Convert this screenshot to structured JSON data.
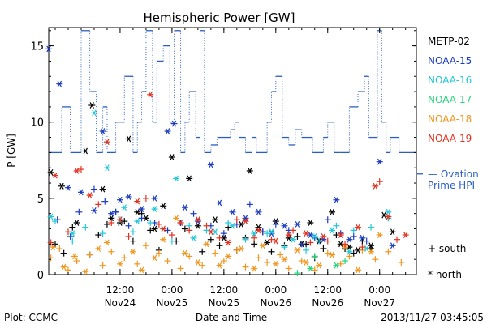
{
  "chart_data": {
    "type": "scatter",
    "title": "Hemispheric Power [GW]",
    "ylabel": "P [GW]",
    "xlabel": "Date and Time",
    "ylim": [
      0,
      16.2
    ],
    "y_ticks": [
      0,
      5,
      10,
      15
    ],
    "y_tick_labels": [
      "0",
      "5",
      "10",
      "15"
    ],
    "x_range_hours": [
      -4.5,
      80.5
    ],
    "x_ticks": [
      {
        "hour": 12,
        "time": "12:00",
        "date": "Nov24"
      },
      {
        "hour": 24,
        "time": "0:00",
        "date": "Nov25"
      },
      {
        "hour": 36,
        "time": "12:00",
        "date": "Nov25"
      },
      {
        "hour": 48,
        "time": "0:00",
        "date": "Nov26"
      },
      {
        "hour": 60,
        "time": "12:00",
        "date": "Nov26"
      },
      {
        "hour": 72,
        "time": "0:00",
        "date": "Nov27"
      }
    ],
    "ovation_label": "— Ovation",
    "ovation_label2": "Prime HPI",
    "ovation_color": "#2a5fc0",
    "ovation_step": [
      [
        -4.5,
        8
      ],
      [
        -1.5,
        11
      ],
      [
        0.5,
        8
      ],
      [
        3,
        16
      ],
      [
        5,
        12
      ],
      [
        6.5,
        8
      ],
      [
        8,
        11
      ],
      [
        9,
        8
      ],
      [
        11,
        10
      ],
      [
        13,
        13
      ],
      [
        15,
        8
      ],
      [
        16,
        10
      ],
      [
        17,
        12
      ],
      [
        18,
        16
      ],
      [
        19.5,
        10
      ],
      [
        20.5,
        14
      ],
      [
        22,
        15
      ],
      [
        23.5,
        10
      ],
      [
        24.5,
        16
      ],
      [
        26,
        8
      ],
      [
        27,
        10
      ],
      [
        28,
        12
      ],
      [
        29.5,
        9
      ],
      [
        30.5,
        16
      ],
      [
        31.5,
        8
      ],
      [
        33,
        8.5
      ],
      [
        34.5,
        9
      ],
      [
        36.5,
        9
      ],
      [
        37.5,
        9.5
      ],
      [
        38.5,
        10
      ],
      [
        39.5,
        9
      ],
      [
        41,
        8
      ],
      [
        42.5,
        9
      ],
      [
        43.5,
        8
      ],
      [
        46,
        10
      ],
      [
        47,
        12
      ],
      [
        48,
        13
      ],
      [
        49.5,
        9
      ],
      [
        51,
        8.5
      ],
      [
        52.5,
        9.5
      ],
      [
        54,
        9
      ],
      [
        56.5,
        8
      ],
      [
        57.5,
        8
      ],
      [
        59,
        9
      ],
      [
        60,
        10
      ],
      [
        61.5,
        8
      ],
      [
        63,
        8
      ],
      [
        65,
        11
      ],
      [
        67,
        12
      ],
      [
        68.5,
        13
      ],
      [
        69.5,
        9
      ],
      [
        71.5,
        16
      ],
      [
        72.5,
        10
      ],
      [
        73.5,
        8
      ],
      [
        74.5,
        9
      ],
      [
        76.5,
        8
      ],
      [
        80.5,
        8
      ]
    ],
    "series": [
      {
        "name": "METP-02",
        "color": "#000000",
        "south": [
          [
            -3,
            2.0
          ],
          [
            -1,
            1.4
          ],
          [
            1,
            3.1
          ],
          [
            5,
            1.3
          ],
          [
            7,
            2.6
          ],
          [
            9,
            3.3
          ],
          [
            11,
            4.1
          ],
          [
            13,
            3.5
          ],
          [
            15,
            2.2
          ],
          [
            17,
            4.0
          ],
          [
            19,
            2.9
          ],
          [
            21,
            1.6
          ],
          [
            25,
            2.2
          ],
          [
            27,
            3.0
          ],
          [
            31,
            1.5
          ],
          [
            33,
            2.3
          ],
          [
            35,
            1.9
          ],
          [
            37,
            3.1
          ],
          [
            39,
            1.6
          ],
          [
            41,
            2.4
          ],
          [
            43,
            2.0
          ],
          [
            45,
            2.8
          ],
          [
            47,
            1.5
          ],
          [
            50,
            1.9
          ],
          [
            53,
            2.5
          ],
          [
            55,
            2.0
          ],
          [
            57,
            1.1
          ],
          [
            59,
            1.7
          ],
          [
            62,
            2.6
          ],
          [
            64,
            1.7
          ],
          [
            66,
            1.4
          ],
          [
            68,
            2.2
          ],
          [
            70,
            1.7
          ]
        ],
        "north": [
          [
            -4,
            6.7
          ],
          [
            -1.5,
            5.8
          ],
          [
            2,
            3.4
          ],
          [
            4,
            8.1
          ],
          [
            5.5,
            11.1
          ],
          [
            8,
            5.6
          ],
          [
            10,
            3.7
          ],
          [
            12,
            3.4
          ],
          [
            14,
            8.9
          ],
          [
            16,
            4.1
          ],
          [
            18,
            3.7
          ],
          [
            20,
            3.0
          ],
          [
            22,
            4.5
          ],
          [
            24,
            7.7
          ],
          [
            28,
            6.3
          ],
          [
            30,
            3.2
          ],
          [
            34,
            3.6
          ],
          [
            36,
            2.4
          ],
          [
            40,
            3.3
          ],
          [
            42,
            6.8
          ],
          [
            44,
            3.1
          ],
          [
            46,
            2.1
          ],
          [
            48,
            3.5
          ],
          [
            51,
            2.4
          ],
          [
            54,
            2.0
          ],
          [
            56,
            3.4
          ],
          [
            58,
            2.2
          ],
          [
            61,
            4.1
          ],
          [
            63,
            2.0
          ],
          [
            65,
            1.8
          ],
          [
            67,
            1.6
          ],
          [
            70,
            1.9
          ],
          [
            73,
            3.9
          ],
          [
            75,
            2.8
          ]
        ]
      },
      {
        "name": "NOAA-15",
        "color": "#1a3bbf",
        "south": [
          [
            -2.5,
            3.6
          ],
          [
            0.5,
            2.5
          ],
          [
            2.5,
            4.1
          ],
          [
            6,
            5.6
          ],
          [
            8.5,
            4.8
          ],
          [
            11,
            4.1
          ],
          [
            14,
            3.2
          ],
          [
            17,
            3.7
          ],
          [
            20,
            3.4
          ],
          [
            23,
            2.9
          ],
          [
            26,
            3.4
          ],
          [
            29,
            4.0
          ],
          [
            33,
            3.2
          ],
          [
            36,
            2.7
          ],
          [
            39,
            3.3
          ],
          [
            42,
            4.6
          ],
          [
            45,
            2.8
          ],
          [
            48,
            3.3
          ],
          [
            51,
            2.9
          ],
          [
            54,
            2.0
          ],
          [
            57,
            2.4
          ],
          [
            60,
            3.6
          ],
          [
            63,
            2.7
          ],
          [
            66,
            2.5
          ],
          [
            69,
            2.2
          ]
        ],
        "north": [
          [
            -4.5,
            14.8
          ],
          [
            -2,
            12.5
          ],
          [
            0,
            5.7
          ],
          [
            3,
            5.4
          ],
          [
            6,
            4.2
          ],
          [
            8,
            9.4
          ],
          [
            10,
            4.0
          ],
          [
            12,
            4.9
          ],
          [
            14,
            5.1
          ],
          [
            17,
            4.3
          ],
          [
            20,
            5.0
          ],
          [
            23,
            9.4
          ],
          [
            24.5,
            9.9
          ],
          [
            27,
            4.4
          ],
          [
            30,
            3.5
          ],
          [
            33,
            7.2
          ],
          [
            35,
            4.7
          ],
          [
            38,
            4.1
          ],
          [
            41,
            3.7
          ],
          [
            44,
            4.1
          ],
          [
            47,
            2.7
          ],
          [
            50,
            3.2
          ],
          [
            53,
            3.3
          ],
          [
            56,
            2.6
          ],
          [
            59,
            2.3
          ],
          [
            62,
            4.9
          ],
          [
            65,
            2.3
          ],
          [
            68,
            2.4
          ],
          [
            72,
            7.4
          ],
          [
            75,
            1.9
          ]
        ]
      },
      {
        "name": "NOAA-16",
        "color": "#22c7d8",
        "south": [
          [
            -3,
            3.5
          ],
          [
            1,
            2.2
          ],
          [
            4,
            3.1
          ],
          [
            8,
            2.7
          ],
          [
            12,
            3.6
          ],
          [
            15,
            2.8
          ],
          [
            19,
            3.4
          ],
          [
            24,
            2.2
          ],
          [
            28,
            3.2
          ],
          [
            32,
            2.9
          ],
          [
            37,
            3.4
          ],
          [
            41,
            2.3
          ],
          [
            46,
            2.7
          ],
          [
            50,
            1.8
          ],
          [
            55,
            1.6
          ],
          [
            58,
            2.2
          ],
          [
            62,
            3.2
          ],
          [
            66,
            2.9
          ],
          [
            70,
            3.1
          ],
          [
            74,
            3.7
          ]
        ],
        "north": [
          [
            -4,
            3.8
          ],
          [
            1,
            2.7
          ],
          [
            6,
            10.6
          ],
          [
            9,
            7.0
          ],
          [
            13,
            4.4
          ],
          [
            16,
            3.5
          ],
          [
            20,
            4.3
          ],
          [
            25,
            6.3
          ],
          [
            29,
            2.4
          ],
          [
            34,
            2.8
          ],
          [
            38,
            3.2
          ],
          [
            43,
            2.7
          ],
          [
            47,
            2.8
          ],
          [
            52,
            2.3
          ],
          [
            57,
            2.5
          ],
          [
            61,
            2.9
          ],
          [
            65,
            1.5
          ],
          [
            69,
            1.7
          ],
          [
            74,
            4.1
          ]
        ]
      },
      {
        "name": "NOAA-17",
        "color": "#22d47a",
        "south": [
          [
            53,
            0.1
          ],
          [
            57,
            1.2
          ],
          [
            64,
            0.9
          ]
        ],
        "north": [
          [
            56,
            0.4
          ],
          [
            62,
            0.6
          ]
        ]
      },
      {
        "name": "NOAA-18",
        "color": "#f0961e",
        "south": [
          [
            -4,
            1.1
          ],
          [
            -2,
            1.7
          ],
          [
            0,
            0.3
          ],
          [
            2,
            0.9
          ],
          [
            5,
            1.3
          ],
          [
            8,
            0.6
          ],
          [
            10,
            1.5
          ],
          [
            13,
            1.1
          ],
          [
            16,
            0.7
          ],
          [
            18,
            1.9
          ],
          [
            21,
            1.4
          ],
          [
            23,
            0.9
          ],
          [
            26,
            0.4
          ],
          [
            28,
            1.2
          ],
          [
            31,
            0.6
          ],
          [
            34,
            1.4
          ],
          [
            36,
            0.9
          ],
          [
            39,
            1.6
          ],
          [
            41,
            0.5
          ],
          [
            44,
            1.1
          ],
          [
            46,
            0.8
          ],
          [
            49,
            1.3
          ],
          [
            51,
            0.4
          ],
          [
            54,
            0.9
          ],
          [
            57,
            0.3
          ],
          [
            60,
            1.4
          ],
          [
            63,
            0.7
          ],
          [
            65,
            1.2
          ],
          [
            68,
            1.6
          ],
          [
            71,
            1.0
          ],
          [
            74,
            1.5
          ],
          [
            77,
            0.8
          ]
        ],
        "north": [
          [
            -3.5,
            1.8
          ],
          [
            -1,
            0.5
          ],
          [
            1.5,
            1.2
          ],
          [
            4,
            0.2
          ],
          [
            7,
            1.7
          ],
          [
            9,
            2.1
          ],
          [
            12,
            0.7
          ],
          [
            15,
            1.5
          ],
          [
            17,
            0.3
          ],
          [
            20,
            1.1
          ],
          [
            22,
            2.3
          ],
          [
            25,
            3.7
          ],
          [
            27,
            1.4
          ],
          [
            30,
            0.8
          ],
          [
            32,
            2.0
          ],
          [
            35,
            0.6
          ],
          [
            37,
            1.2
          ],
          [
            40,
            1.7
          ],
          [
            43,
            0.4
          ],
          [
            45,
            1.9
          ],
          [
            48,
            0.7
          ],
          [
            50,
            1.0
          ],
          [
            53,
            1.6
          ],
          [
            55,
            0.8
          ],
          [
            58,
            0.6
          ],
          [
            61,
            1.3
          ],
          [
            64,
            1.8
          ],
          [
            67,
            0.3
          ],
          [
            70,
            1.5
          ],
          [
            72,
            2.6
          ]
        ]
      },
      {
        "name": "NOAA-19",
        "color": "#e03220",
        "south": [
          [
            -4,
            2.1
          ],
          [
            0,
            2.8
          ],
          [
            3,
            6.9
          ],
          [
            7,
            4.6
          ],
          [
            10,
            3.4
          ],
          [
            14,
            2.5
          ],
          [
            18,
            5.0
          ],
          [
            21,
            3.3
          ],
          [
            24,
            2.6
          ],
          [
            28,
            2.9
          ],
          [
            32,
            3.2
          ],
          [
            35,
            2.4
          ],
          [
            39,
            3.6
          ],
          [
            43,
            2.4
          ],
          [
            47,
            2.3
          ],
          [
            52,
            2.9
          ],
          [
            56,
            2.1
          ],
          [
            60,
            2.2
          ],
          [
            64,
            2.0
          ],
          [
            68,
            1.8
          ],
          [
            72,
            6.1
          ],
          [
            76,
            2.3
          ]
        ],
        "north": [
          [
            -3,
            6.5
          ],
          [
            2,
            6.8
          ],
          [
            5,
            5.2
          ],
          [
            9,
            8.7
          ],
          [
            12,
            3.6
          ],
          [
            16,
            4.8
          ],
          [
            19,
            11.8
          ],
          [
            22,
            3.0
          ],
          [
            26,
            3.4
          ],
          [
            30,
            3.6
          ],
          [
            33,
            2.8
          ],
          [
            37,
            2.1
          ],
          [
            41,
            3.5
          ],
          [
            44,
            2.9
          ],
          [
            48,
            2.2
          ],
          [
            51,
            2.6
          ],
          [
            55,
            2.7
          ],
          [
            59,
            2.5
          ],
          [
            63,
            2.6
          ],
          [
            67,
            3.1
          ],
          [
            71,
            5.8
          ],
          [
            74,
            3.8
          ],
          [
            78,
            2.6
          ]
        ]
      }
    ],
    "symbol_legend": {
      "south": "+ south",
      "north": "* north"
    }
  },
  "footer": {
    "plot_credit": "Plot: CCMC",
    "timestamp": "2013/11/27 03:45:05"
  }
}
